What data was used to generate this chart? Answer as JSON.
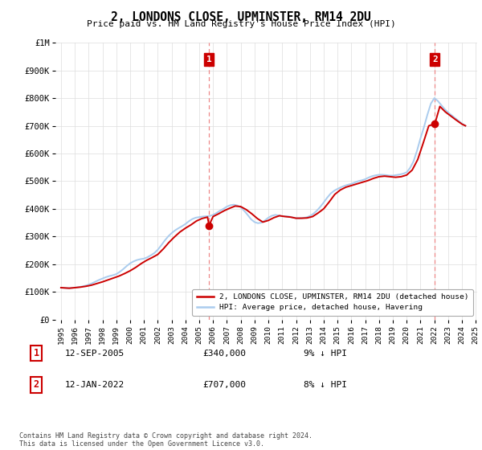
{
  "title": "2, LONDONS CLOSE, UPMINSTER, RM14 2DU",
  "subtitle": "Price paid vs. HM Land Registry's House Price Index (HPI)",
  "ylim": [
    0,
    1000000
  ],
  "yticks": [
    0,
    100000,
    200000,
    300000,
    400000,
    500000,
    600000,
    700000,
    800000,
    900000,
    1000000
  ],
  "ytick_labels": [
    "£0",
    "£100K",
    "£200K",
    "£300K",
    "£400K",
    "£500K",
    "£600K",
    "£700K",
    "£800K",
    "£900K",
    "£1M"
  ],
  "hpi_color": "#aaccee",
  "price_color": "#cc0000",
  "marker_color": "#cc0000",
  "vline_color": "#ee8888",
  "annotation_box_color": "#cc0000",
  "background_color": "#ffffff",
  "grid_color": "#dddddd",
  "legend_label_red": "2, LONDONS CLOSE, UPMINSTER, RM14 2DU (detached house)",
  "legend_label_blue": "HPI: Average price, detached house, Havering",
  "sale1_label": "1",
  "sale1_date": "12-SEP-2005",
  "sale1_price": "£340,000",
  "sale1_hpi": "9% ↓ HPI",
  "sale1_year": 2005.71,
  "sale1_value": 340000,
  "sale2_label": "2",
  "sale2_date": "12-JAN-2022",
  "sale2_price": "£707,000",
  "sale2_hpi": "8% ↓ HPI",
  "sale2_year": 2022.04,
  "sale2_value": 707000,
  "footnote": "Contains HM Land Registry data © Crown copyright and database right 2024.\nThis data is licensed under the Open Government Licence v3.0.",
  "hpi_data_years": [
    1995.0,
    1995.25,
    1995.5,
    1995.75,
    1996.0,
    1996.25,
    1996.5,
    1996.75,
    1997.0,
    1997.25,
    1997.5,
    1997.75,
    1998.0,
    1998.25,
    1998.5,
    1998.75,
    1999.0,
    1999.25,
    1999.5,
    1999.75,
    2000.0,
    2000.25,
    2000.5,
    2000.75,
    2001.0,
    2001.25,
    2001.5,
    2001.75,
    2002.0,
    2002.25,
    2002.5,
    2002.75,
    2003.0,
    2003.25,
    2003.5,
    2003.75,
    2004.0,
    2004.25,
    2004.5,
    2004.75,
    2005.0,
    2005.25,
    2005.5,
    2005.75,
    2006.0,
    2006.25,
    2006.5,
    2006.75,
    2007.0,
    2007.25,
    2007.5,
    2007.75,
    2008.0,
    2008.25,
    2008.5,
    2008.75,
    2009.0,
    2009.25,
    2009.5,
    2009.75,
    2010.0,
    2010.25,
    2010.5,
    2010.75,
    2011.0,
    2011.25,
    2011.5,
    2011.75,
    2012.0,
    2012.25,
    2012.5,
    2012.75,
    2013.0,
    2013.25,
    2013.5,
    2013.75,
    2014.0,
    2014.25,
    2014.5,
    2014.75,
    2015.0,
    2015.25,
    2015.5,
    2015.75,
    2016.0,
    2016.25,
    2016.5,
    2016.75,
    2017.0,
    2017.25,
    2017.5,
    2017.75,
    2018.0,
    2018.25,
    2018.5,
    2018.75,
    2019.0,
    2019.25,
    2019.5,
    2019.75,
    2020.0,
    2020.25,
    2020.5,
    2020.75,
    2021.0,
    2021.25,
    2021.5,
    2021.75,
    2022.0,
    2022.25,
    2022.5,
    2022.75,
    2023.0,
    2023.25,
    2023.5,
    2023.75,
    2024.0,
    2024.25
  ],
  "hpi_data_values": [
    115000,
    114000,
    113500,
    114000,
    115000,
    117000,
    119000,
    122000,
    126000,
    131000,
    137000,
    143000,
    148000,
    153000,
    157000,
    160000,
    164000,
    172000,
    182000,
    193000,
    203000,
    210000,
    215000,
    218000,
    220000,
    225000,
    232000,
    240000,
    252000,
    268000,
    285000,
    300000,
    312000,
    322000,
    330000,
    337000,
    345000,
    355000,
    363000,
    368000,
    370000,
    372000,
    373000,
    374000,
    378000,
    385000,
    393000,
    400000,
    408000,
    413000,
    415000,
    412000,
    405000,
    393000,
    378000,
    362000,
    352000,
    348000,
    350000,
    358000,
    368000,
    375000,
    378000,
    376000,
    373000,
    373000,
    372000,
    369000,
    366000,
    366000,
    367000,
    369000,
    374000,
    382000,
    393000,
    407000,
    423000,
    440000,
    455000,
    465000,
    472000,
    478000,
    483000,
    487000,
    490000,
    495000,
    500000,
    503000,
    507000,
    513000,
    518000,
    521000,
    523000,
    523000,
    522000,
    520000,
    520000,
    522000,
    524000,
    527000,
    532000,
    548000,
    572000,
    610000,
    655000,
    695000,
    740000,
    780000,
    800000,
    790000,
    775000,
    760000,
    748000,
    738000,
    728000,
    718000,
    708000,
    700000
  ],
  "price_data_years": [
    1995.0,
    1995.3,
    1995.6,
    1996.0,
    1996.4,
    1996.8,
    1997.2,
    1997.6,
    1998.0,
    1998.4,
    1998.8,
    1999.2,
    1999.6,
    2000.0,
    2000.4,
    2000.8,
    2001.2,
    2001.6,
    2002.0,
    2002.4,
    2002.8,
    2003.2,
    2003.6,
    2004.0,
    2004.4,
    2004.8,
    2005.2,
    2005.6,
    2005.71,
    2006.0,
    2006.4,
    2006.8,
    2007.2,
    2007.6,
    2008.0,
    2008.4,
    2008.8,
    2009.2,
    2009.6,
    2010.0,
    2010.4,
    2010.8,
    2011.2,
    2011.6,
    2012.0,
    2012.4,
    2012.8,
    2013.2,
    2013.6,
    2014.0,
    2014.4,
    2014.8,
    2015.2,
    2015.6,
    2016.0,
    2016.4,
    2016.8,
    2017.2,
    2017.6,
    2018.0,
    2018.4,
    2018.8,
    2019.2,
    2019.6,
    2020.0,
    2020.4,
    2020.8,
    2021.2,
    2021.6,
    2022.04,
    2022.4,
    2022.8,
    2023.2,
    2023.6,
    2024.0,
    2024.25
  ],
  "price_data_values": [
    115000,
    114000,
    113000,
    115000,
    117000,
    120000,
    124000,
    130000,
    136000,
    143000,
    150000,
    157000,
    166000,
    176000,
    188000,
    202000,
    214000,
    224000,
    235000,
    255000,
    278000,
    298000,
    316000,
    330000,
    342000,
    356000,
    365000,
    370000,
    340000,
    372000,
    382000,
    393000,
    402000,
    410000,
    408000,
    397000,
    382000,
    365000,
    352000,
    358000,
    368000,
    375000,
    372000,
    370000,
    366000,
    366000,
    367000,
    372000,
    385000,
    400000,
    425000,
    452000,
    468000,
    478000,
    484000,
    490000,
    496000,
    502000,
    510000,
    516000,
    518000,
    516000,
    514000,
    516000,
    522000,
    540000,
    578000,
    638000,
    700000,
    707000,
    770000,
    750000,
    735000,
    720000,
    706000,
    700000
  ]
}
